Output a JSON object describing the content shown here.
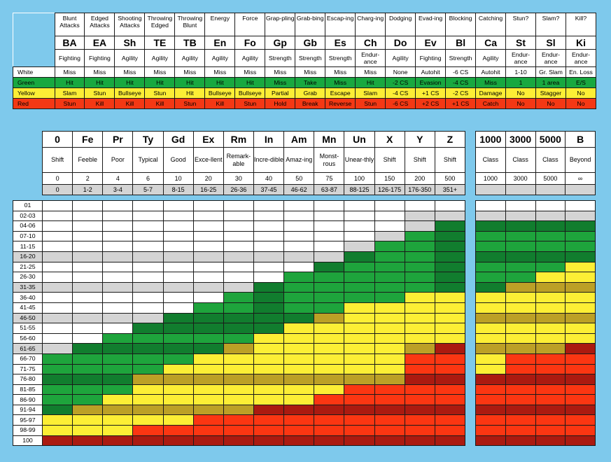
{
  "actions": [
    {
      "name": "Blunt Attacks",
      "abbr": "BA",
      "stat": "Fighting",
      "res": [
        "Miss",
        "Hit",
        "Slam",
        "Stun"
      ]
    },
    {
      "name": "Edged Attacks",
      "abbr": "EA",
      "stat": "Fighting",
      "res": [
        "Miss",
        "Hit",
        "Stun",
        "Kill"
      ]
    },
    {
      "name": "Shooting Attacks",
      "abbr": "Sh",
      "stat": "Agility",
      "res": [
        "Miss",
        "Hit",
        "Bullseye",
        "Kill"
      ]
    },
    {
      "name": "Throwing Edged",
      "abbr": "TE",
      "stat": "Agility",
      "res": [
        "Miss",
        "Hit",
        "Stun",
        "Kill"
      ]
    },
    {
      "name": "Throwing Blunt",
      "abbr": "TB",
      "stat": "Agility",
      "res": [
        "Miss",
        "Hit",
        "Hit",
        "Stun"
      ]
    },
    {
      "name": "Energy",
      "abbr": "En",
      "stat": "Agility",
      "res": [
        "Miss",
        "Hit",
        "Bullseye",
        "Kill"
      ]
    },
    {
      "name": "Force",
      "abbr": "Fo",
      "stat": "Agility",
      "res": [
        "Miss",
        "Hit",
        "Bullseye",
        "Stun"
      ]
    },
    {
      "name": "Grap-pling",
      "abbr": "Gp",
      "stat": "Strength",
      "res": [
        "Miss",
        "Miss",
        "Partial",
        "Hold"
      ]
    },
    {
      "name": "Grab-bing",
      "abbr": "Gb",
      "stat": "Strength",
      "res": [
        "Miss",
        "Take",
        "Grab",
        "Break"
      ]
    },
    {
      "name": "Escap-ing",
      "abbr": "Es",
      "stat": "Strength",
      "res": [
        "Miss",
        "Miss",
        "Escape",
        "Reverse"
      ]
    },
    {
      "name": "Charg-ing",
      "abbr": "Ch",
      "stat": "Endur-ance",
      "res": [
        "Miss",
        "Hit",
        "Slam",
        "Stun"
      ]
    },
    {
      "name": "Dodging",
      "abbr": "Do",
      "stat": "Agility",
      "res": [
        "None",
        "-2 CS",
        "-4 CS",
        "-6 CS"
      ]
    },
    {
      "name": "Evad-ing",
      "abbr": "Ev",
      "stat": "Fighting",
      "res": [
        "Autohit",
        "Evasion",
        "+1 CS",
        "+2 CS"
      ]
    },
    {
      "name": "Blocking",
      "abbr": "Bl",
      "stat": "Strength",
      "res": [
        "-6 CS",
        "-4 CS",
        "-2 CS",
        "+1 CS"
      ]
    },
    {
      "name": "Catching",
      "abbr": "Ca",
      "stat": "Agility",
      "res": [
        "Autohit",
        "Miss",
        "Damage",
        "Catch"
      ]
    },
    {
      "name": "Stun?",
      "abbr": "St",
      "stat": "Endur-ance",
      "res": [
        "1-10",
        "1",
        "No",
        "No"
      ]
    },
    {
      "name": "Slam?",
      "abbr": "Sl",
      "stat": "Endur-ance",
      "res": [
        "Gr. Slam",
        "1 area",
        "Stagger",
        "No"
      ]
    },
    {
      "name": "Kill?",
      "abbr": "Ki",
      "stat": "Endur-ance",
      "res": [
        "En. Loss",
        "E/S",
        "No",
        "No"
      ]
    }
  ],
  "result_labels": [
    "White",
    "Green",
    "Yellow",
    "Red"
  ],
  "ranks": [
    {
      "abbr": "0",
      "name": "Shift",
      "value": "0",
      "range": "0"
    },
    {
      "abbr": "Fe",
      "name": "Feeble",
      "value": "2",
      "range": "1-2"
    },
    {
      "abbr": "Pr",
      "name": "Poor",
      "value": "4",
      "range": "3-4"
    },
    {
      "abbr": "Ty",
      "name": "Typical",
      "value": "6",
      "range": "5-7"
    },
    {
      "abbr": "Gd",
      "name": "Good",
      "value": "10",
      "range": "8-15"
    },
    {
      "abbr": "Ex",
      "name": "Exce-llent",
      "value": "20",
      "range": "16-25"
    },
    {
      "abbr": "Rm",
      "name": "Remark-able",
      "value": "30",
      "range": "26-36"
    },
    {
      "abbr": "In",
      "name": "Incre-dible",
      "value": "40",
      "range": "37-45"
    },
    {
      "abbr": "Am",
      "name": "Amaz-ing",
      "value": "50",
      "range": "46-62"
    },
    {
      "abbr": "Mn",
      "name": "Monst-rous",
      "value": "75",
      "range": "63-87"
    },
    {
      "abbr": "Un",
      "name": "Unear-thly",
      "value": "100",
      "range": "88-125"
    },
    {
      "abbr": "X",
      "name": "Shift",
      "value": "150",
      "range": "126-175"
    },
    {
      "abbr": "Y",
      "name": "Shift",
      "value": "200",
      "range": "176-350"
    },
    {
      "abbr": "Z",
      "name": "Shift",
      "value": "500",
      "range": "351+"
    }
  ],
  "class_ranks": [
    {
      "abbr": "1000",
      "name": "Class",
      "value": "1000",
      "range": ""
    },
    {
      "abbr": "3000",
      "name": "Class",
      "value": "3000",
      "range": ""
    },
    {
      "abbr": "5000",
      "name": "Class",
      "value": "5000",
      "range": ""
    },
    {
      "abbr": "B",
      "name": "Beyond",
      "value": "∞",
      "range": ""
    }
  ],
  "rolls": [
    "01",
    "02-03",
    "04-06",
    "07-10",
    "11-15",
    "16-20",
    "21-25",
    "26-30",
    "31-35",
    "36-40",
    "41-45",
    "46-50",
    "51-55",
    "56-60",
    "61-65",
    "66-70",
    "71-75",
    "76-80",
    "81-85",
    "86-90",
    "91-94",
    "95-97",
    "98-99",
    "100"
  ],
  "colors": {
    "W": "#ffffff",
    "G": "#d4d4d4",
    "L": "#1ea43c",
    "D": "#117d2e",
    "Y": "#fcee35",
    "O": "#bca026",
    "R": "#fb3612",
    "M": "#ab1a10"
  },
  "grid": [
    "WWWWWWWWWWWWWW",
    "WWWWWWWWWWWWGG",
    "WWWWWWWWWWWWGD",
    "WWWWWWWWWWWGLD",
    "WWWWWWWWWWGLLD",
    "GGGGGGGGGGDLLD",
    "WWWWWWWWWDLLLD",
    "WWWWWWWWLLLLLD",
    "GGGGGGGDLLLLLD",
    "WWWWWWLDLLLLYY",
    "WWWWWLLDLLYYYY",
    "GGGGDDDDDOYYYY",
    "WWWDDDDDYYYYYY",
    "WWLLLLLYYYYYYY",
    "GDDDDDOYYYYYOM",
    "LLLLLYYYYYYYRR",
    "LLLLYYYYYYYYRR",
    "DDDOOOOOOOOOMM",
    "LLLYYYYYYYRRRR",
    "LLYYYYYYYRRRRR",
    "DOOOOOOMMMMMMM",
    "YYYYYRRRRRRRRR",
    "YYYRRRRRRRRRRR",
    "MMMMMMMMMMMMMM"
  ],
  "gridB": [
    "WWWW",
    "GGGG",
    "DDDD",
    "LLLL",
    "LLLL",
    "DDDD",
    "LLLY",
    "LLYY",
    "DOOO",
    "YYYY",
    "YYYY",
    "OOOO",
    "YYYY",
    "YYYY",
    "OOOM",
    "YRRR",
    "YRRR",
    "MMMM",
    "RRRR",
    "RRRR",
    "MMMM",
    "RRRR",
    "RRRR",
    "MMMM"
  ]
}
